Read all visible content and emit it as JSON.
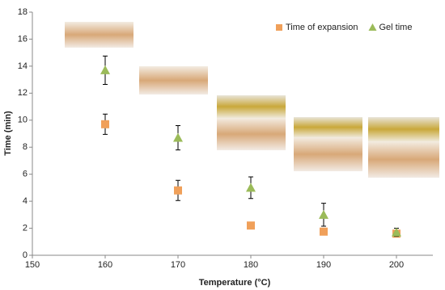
{
  "chart_data": {
    "type": "scatter",
    "x_label": "Temperature (°C)",
    "y_label": "Time (min)",
    "xlim": [
      150,
      205
    ],
    "xticks": [
      150,
      160,
      170,
      180,
      190,
      200
    ],
    "ylim": [
      0,
      18
    ],
    "yticks": [
      0,
      2,
      4,
      6,
      8,
      10,
      12,
      14,
      16,
      18
    ],
    "grid": false,
    "legend": "top-right",
    "series": [
      {
        "name": "Time of expansion",
        "color": "#f0a05a",
        "marker": "square",
        "x": [
          160,
          170,
          180,
          190,
          200
        ],
        "values": [
          9.7,
          4.8,
          2.2,
          1.75,
          1.6
        ],
        "errors": [
          0.75,
          0.75,
          null,
          null,
          0.2
        ]
      },
      {
        "name": "Gel time",
        "color": "#9bbb59",
        "marker": "triangle",
        "x": [
          160,
          170,
          180,
          190,
          200
        ],
        "values": [
          13.7,
          8.7,
          5.0,
          3.0,
          1.7
        ],
        "errors": [
          1.05,
          0.9,
          0.8,
          0.85,
          0.3
        ]
      }
    ]
  }
}
